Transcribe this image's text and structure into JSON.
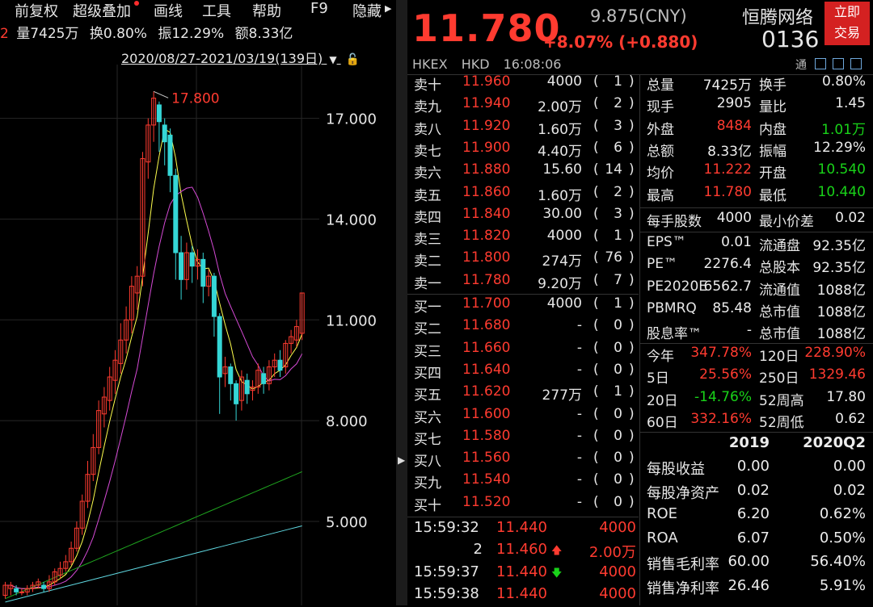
{
  "menu": {
    "items": [
      "前复权",
      "超级叠加",
      "画线",
      "工具",
      "帮助",
      "F9",
      "隐藏"
    ]
  },
  "stats_line": {
    "prefix": "2",
    "volume": "量7425万",
    "turnover": "换0.80%",
    "amplitude": "振12.29%",
    "amount": "额8.33亿"
  },
  "date_range": "2020/08/27-2021/03/19(139日)",
  "chart_data": {
    "type": "candlestick",
    "y_ticks": [
      "17.000",
      "14.000",
      "11.000",
      "8.000",
      "5.000"
    ],
    "y_range": [
      2.5,
      18.6
    ],
    "max_label": "17.800",
    "max_value": 17.8,
    "colors": {
      "up": "#ff3b30",
      "down": "#35d6d6",
      "ma5": "#ffff4d",
      "ma10": "#d54ad5",
      "ma20": "#1fa51f",
      "ma60": "#5fd7e0"
    }
  },
  "quote": {
    "price": "11.780",
    "prev_close": "9.875(CNY)",
    "change": "+8.07% (+0.880)",
    "name": "恒腾网络",
    "code": "0136",
    "trade_button": "立即\n交易",
    "exchange": "HKEX",
    "currency": "HKD",
    "time": "16:08:06",
    "tong": "通"
  },
  "order_book": {
    "asks": [
      {
        "label": "卖十",
        "price": "11.960",
        "vol": "4000",
        "cnt": "1"
      },
      {
        "label": "卖九",
        "price": "11.940",
        "vol": "2.00万",
        "cnt": "2"
      },
      {
        "label": "卖八",
        "price": "11.920",
        "vol": "1.60万",
        "cnt": "3"
      },
      {
        "label": "卖七",
        "price": "11.900",
        "vol": "4.40万",
        "cnt": "6"
      },
      {
        "label": "卖六",
        "price": "11.880",
        "vol": "15.60",
        "cnt": "14"
      },
      {
        "label": "卖五",
        "price": "11.860",
        "vol": "1.60万",
        "cnt": "2"
      },
      {
        "label": "卖四",
        "price": "11.840",
        "vol": "30.00",
        "cnt": "3"
      },
      {
        "label": "卖三",
        "price": "11.820",
        "vol": "4000",
        "cnt": "1"
      },
      {
        "label": "卖二",
        "price": "11.800",
        "vol": "274万",
        "cnt": "76"
      },
      {
        "label": "卖一",
        "price": "11.780",
        "vol": "9.20万",
        "cnt": "7"
      }
    ],
    "bids": [
      {
        "label": "买一",
        "price": "11.700",
        "vol": "4000",
        "cnt": "1"
      },
      {
        "label": "买二",
        "price": "11.680",
        "vol": "-",
        "cnt": "0"
      },
      {
        "label": "买三",
        "price": "11.660",
        "vol": "-",
        "cnt": "0"
      },
      {
        "label": "买四",
        "price": "11.640",
        "vol": "-",
        "cnt": "0"
      },
      {
        "label": "买五",
        "price": "11.620",
        "vol": "277万",
        "cnt": "1"
      },
      {
        "label": "买六",
        "price": "11.600",
        "vol": "-",
        "cnt": "0"
      },
      {
        "label": "买七",
        "price": "11.580",
        "vol": "-",
        "cnt": "0"
      },
      {
        "label": "买八",
        "price": "11.560",
        "vol": "-",
        "cnt": "0"
      },
      {
        "label": "买九",
        "price": "11.540",
        "vol": "-",
        "cnt": "0"
      },
      {
        "label": "买十",
        "price": "11.520",
        "vol": "-",
        "cnt": "0"
      }
    ]
  },
  "ticks": [
    {
      "time": "15:59:32",
      "price": "11.440",
      "dir": "",
      "vol": "4000"
    },
    {
      "time": "2",
      "price": "11.460",
      "dir": "up",
      "vol": "2.00万"
    },
    {
      "time": "15:59:37",
      "price": "11.440",
      "dir": "down",
      "vol": "4000"
    },
    {
      "time": "15:59:38",
      "price": "11.440",
      "dir": "",
      "vol": "4000"
    }
  ],
  "stats": [
    {
      "l1": "总量",
      "v1": "7425万",
      "c1": "white",
      "l2": "换手",
      "v2": "0.80%",
      "c2": "white"
    },
    {
      "l1": "现手",
      "v1": "2905",
      "c1": "white",
      "l2": "量比",
      "v2": "1.45",
      "c2": "white"
    },
    {
      "l1": "外盘",
      "v1": "8484",
      "c1": "red",
      "l2": "内盘",
      "v2": "1.01万",
      "c2": "green"
    },
    {
      "l1": "总额",
      "v1": "8.33亿",
      "c1": "white",
      "l2": "振幅",
      "v2": "12.29%",
      "c2": "white"
    },
    {
      "l1": "均价",
      "v1": "11.222",
      "c1": "red",
      "l2": "开盘",
      "v2": "10.540",
      "c2": "green"
    },
    {
      "l1": "最高",
      "v1": "11.780",
      "c1": "red",
      "l2": "最低",
      "v2": "10.440",
      "c2": "green"
    }
  ],
  "lot": {
    "l1": "每手股数",
    "v1": "4000",
    "l2": "最小价差",
    "v2": "0.02"
  },
  "valuation": [
    {
      "l1": "EPS™",
      "v1": "0.01",
      "l2": "流通盘",
      "v2": "92.35亿"
    },
    {
      "l1": "PE™",
      "v1": "2276.4",
      "l2": "总股本",
      "v2": "92.35亿"
    },
    {
      "l1": "PE2020E",
      "v1": "6562.7",
      "l2": "流通值",
      "v2": "1088亿"
    },
    {
      "l1": "PBMRQ",
      "v1": "85.48",
      "l2": "总市值",
      "v2": "1088亿"
    },
    {
      "l1": "股息率™",
      "v1": "-",
      "l2": "总市值",
      "v2": "1088亿"
    }
  ],
  "periods": [
    {
      "l1": "今年",
      "v1": "347.78%",
      "c1": "red",
      "l2": "120日",
      "v2": "228.90%",
      "c2": "red"
    },
    {
      "l1": "5日",
      "v1": "25.56%",
      "c1": "red",
      "l2": "250日",
      "v2": "1329.46",
      "c2": "red"
    },
    {
      "l1": "20日",
      "v1": "-14.76%",
      "c1": "green",
      "l2": "52周高",
      "v2": "17.80",
      "c2": "white"
    },
    {
      "l1": "60日",
      "v1": "332.16%",
      "c1": "red",
      "l2": "52周低",
      "v2": "0.62",
      "c2": "white"
    }
  ],
  "financials": {
    "headers": [
      "2019",
      "2020Q2"
    ],
    "rows": [
      {
        "label": "每股收益",
        "a": "0.00",
        "b": "0.00"
      },
      {
        "label": "每股净资产",
        "a": "0.02",
        "b": "0.02"
      },
      {
        "label": "ROE",
        "a": "6.20",
        "b": "0.62%"
      },
      {
        "label": "ROA",
        "a": "6.07",
        "b": "0.50%"
      },
      {
        "label": "销售毛利率",
        "a": "60.00",
        "b": "56.40%"
      },
      {
        "label": "销售净利率",
        "a": "26.46",
        "b": "5.91%"
      }
    ]
  }
}
